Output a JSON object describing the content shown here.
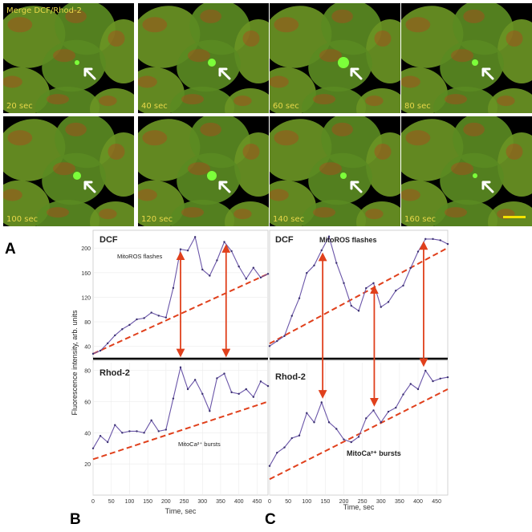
{
  "figure": {
    "merge_title": "Merge DCF/Rhod-2",
    "frames": [
      "20 sec",
      "40 sec",
      "60 sec",
      "80 sec",
      "100 sec",
      "120 sec",
      "140 sec",
      "160 sec"
    ],
    "panel_letters": {
      "a": "A",
      "b": "B",
      "c": "C"
    },
    "y_axis_label": "Fluorescence intensity, arb. units",
    "colors": {
      "trace": "#6a55a8",
      "trend": "#e0401c",
      "arrow": "#e0401c",
      "cell_green": "#46a020",
      "label": "#e8d84a"
    }
  },
  "chart_data": [
    {
      "type": "line",
      "panel": "B-top",
      "title": "DCF",
      "annotation": "MitoROS flashes",
      "xlabel": "",
      "ylabel": "",
      "xlim": [
        0,
        480
      ],
      "ylim": [
        20,
        225
      ],
      "y_ticks": [
        "40",
        "80",
        "120",
        "160",
        "200"
      ],
      "x": [
        0,
        20,
        40,
        60,
        80,
        100,
        120,
        140,
        160,
        180,
        200,
        220,
        240,
        260,
        280,
        300,
        320,
        340,
        360,
        380,
        400,
        420,
        440,
        460,
        480
      ],
      "values": [
        28,
        33,
        45,
        58,
        68,
        75,
        84,
        86,
        95,
        90,
        87,
        135,
        198,
        196,
        218,
        165,
        155,
        180,
        210,
        195,
        170,
        150,
        168,
        152,
        158
      ],
      "trend": [
        [
          0,
          28
        ],
        [
          480,
          158
        ]
      ],
      "arrow_x": [
        240,
        365
      ]
    },
    {
      "type": "line",
      "panel": "B-bottom",
      "title": "Rhod-2",
      "annotation": "MitoCa²⁺ bursts",
      "xlabel": "Time, sec",
      "ylabel": "",
      "xlim": [
        0,
        480
      ],
      "ylim": [
        0,
        85
      ],
      "y_ticks": [
        "20",
        "40",
        "60",
        "80"
      ],
      "x_ticks": [
        "0",
        "50",
        "100",
        "150",
        "200",
        "250",
        "300",
        "350",
        "400",
        "450"
      ],
      "x": [
        0,
        20,
        40,
        60,
        80,
        100,
        120,
        140,
        160,
        180,
        200,
        220,
        240,
        260,
        280,
        300,
        320,
        340,
        360,
        380,
        400,
        420,
        440,
        460,
        480
      ],
      "values": [
        30,
        38,
        34,
        45,
        40,
        41,
        41,
        40,
        48,
        41,
        42,
        62,
        82,
        68,
        74,
        65,
        54,
        75,
        78,
        66,
        65,
        68,
        63,
        73,
        70
      ],
      "trend": [
        [
          0,
          23
        ],
        [
          480,
          60
        ]
      ]
    },
    {
      "type": "line",
      "panel": "C-top",
      "title": "DCF",
      "annotation": "MitoROS flashes",
      "xlabel": "",
      "ylabel": "",
      "xlim": [
        0,
        480
      ],
      "ylim": [
        0,
        100
      ],
      "x": [
        0,
        20,
        40,
        60,
        80,
        100,
        120,
        140,
        160,
        180,
        200,
        220,
        240,
        260,
        280,
        300,
        320,
        340,
        360,
        380,
        400,
        420,
        440,
        460,
        480
      ],
      "values": [
        10,
        14,
        18,
        34,
        48,
        68,
        74,
        86,
        97,
        76,
        60,
        42,
        38,
        56,
        60,
        41,
        45,
        54,
        58,
        72,
        85,
        95,
        95,
        94,
        91
      ],
      "trend": [
        [
          0,
          12
        ],
        [
          480,
          88
        ]
      ],
      "arrow_x": [
        143,
        282,
        415
      ]
    },
    {
      "type": "line",
      "panel": "C-bottom",
      "title": "Rhod-2",
      "annotation": "MitoCa²⁺ bursts",
      "xlabel": "Time, sec",
      "ylabel": "",
      "xlim": [
        0,
        480
      ],
      "ylim": [
        0,
        100
      ],
      "x_ticks": [
        "0",
        "50",
        "100",
        "150",
        "200",
        "250",
        "300",
        "350",
        "400",
        "450"
      ],
      "x": [
        0,
        20,
        40,
        60,
        80,
        100,
        120,
        140,
        160,
        180,
        200,
        220,
        240,
        260,
        280,
        300,
        320,
        340,
        360,
        380,
        400,
        420,
        440,
        460,
        480
      ],
      "values": [
        22,
        32,
        36,
        43,
        45,
        62,
        55,
        70,
        55,
        50,
        42,
        40,
        44,
        58,
        64,
        55,
        63,
        66,
        76,
        84,
        80,
        94,
        86,
        88,
        89
      ],
      "trend": [
        [
          0,
          12
        ],
        [
          480,
          80
        ]
      ]
    }
  ]
}
